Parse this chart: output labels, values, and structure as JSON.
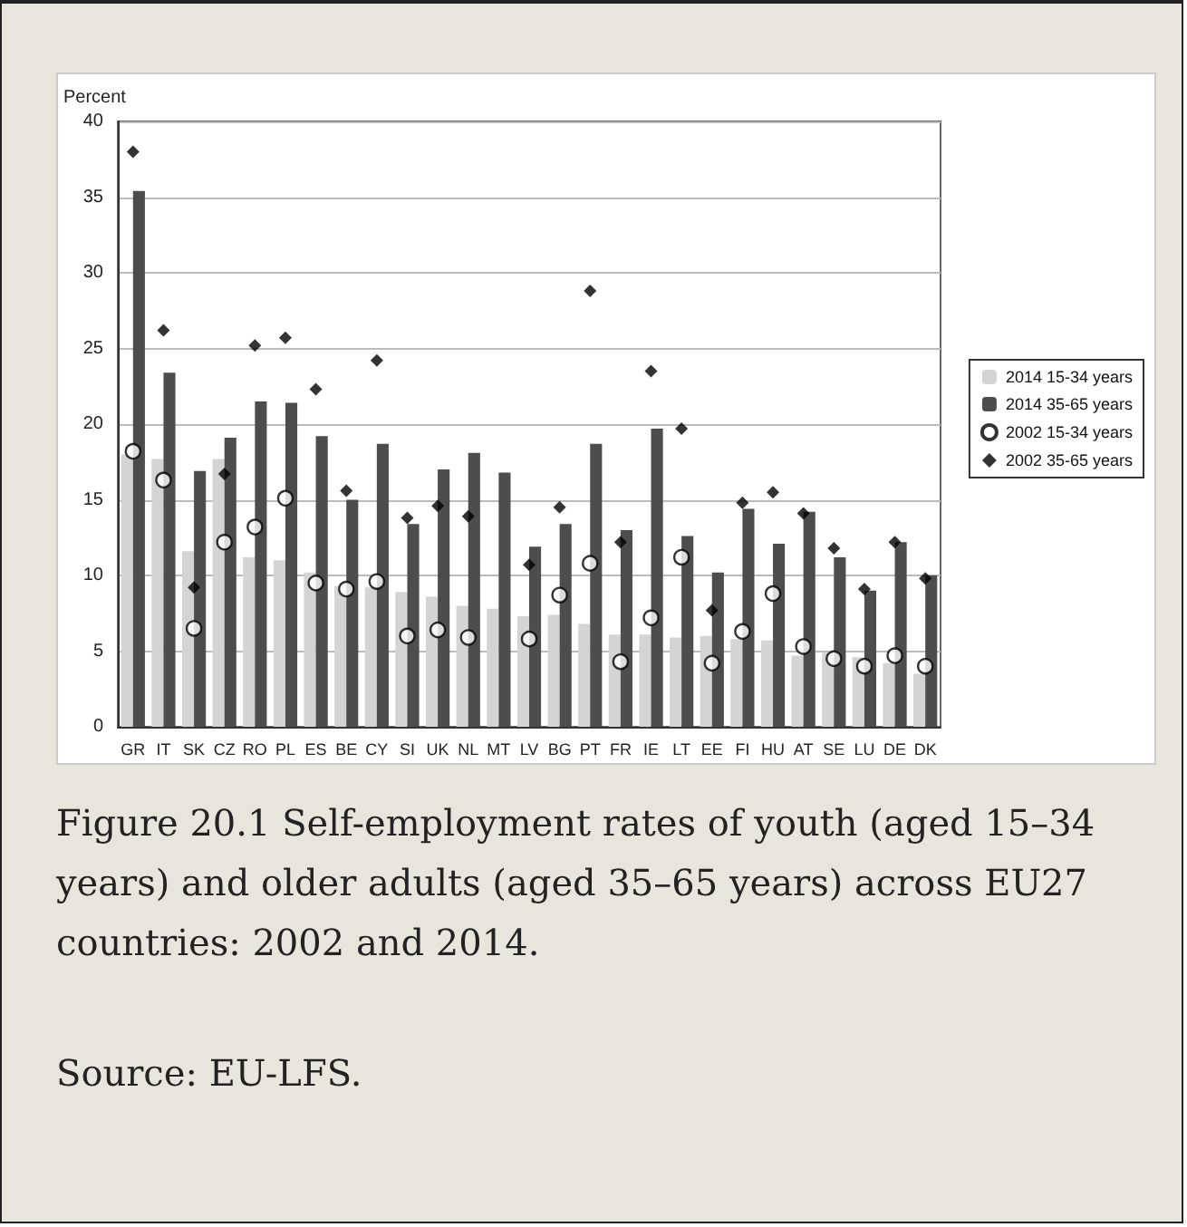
{
  "chart_data": {
    "type": "bar",
    "title": "Figure 20.1 Self-employment rates of youth (aged 15–34 years) and older adults (aged 35–65 years) across EU27 countries: 2002 and 2014.",
    "ylabel": "Percent",
    "annotations": [
      "Source: EU-LFS."
    ],
    "categories": [
      "GR",
      "IT",
      "SK",
      "CZ",
      "RO",
      "PL",
      "ES",
      "BE",
      "CY",
      "SI",
      "UK",
      "NL",
      "MT",
      "LV",
      "BG",
      "PT",
      "FR",
      "IE",
      "LT",
      "EE",
      "FI",
      "HU",
      "AT",
      "SE",
      "LU",
      "DE",
      "DK"
    ],
    "series": [
      {
        "name": "2014 15-34 years",
        "color": "#d4d4d4",
        "values": [
          18,
          17.7,
          11.6,
          17.7,
          11.2,
          11,
          10.2,
          9.3,
          9.2,
          8.9,
          8.6,
          8,
          7.8,
          7.3,
          7.4,
          6.8,
          6.1,
          6.1,
          5.9,
          6,
          5.8,
          5.7,
          4.7,
          4.9,
          4.6,
          4.2,
          3.5
        ]
      },
      {
        "name": "2014 35-65 years",
        "color": "#4d4d4d",
        "values": [
          35.4,
          23.4,
          16.9,
          19.1,
          21.5,
          21.4,
          19.2,
          15,
          18.7,
          13.4,
          17,
          18.1,
          16.8,
          11.9,
          13.4,
          18.7,
          13,
          19.7,
          12.6,
          10.2,
          14.4,
          12.1,
          14.2,
          11.2,
          9,
          12.2,
          10
        ]
      },
      {
        "name": "2002 15-34 years",
        "type": "scatter",
        "marker": "circle",
        "color": "#ffffff",
        "values": [
          18.2,
          16.3,
          6.5,
          12.2,
          13.2,
          15.1,
          9.5,
          9.1,
          9.6,
          6,
          6.4,
          5.9,
          null,
          5.8,
          8.7,
          10.8,
          4.3,
          7.2,
          11.2,
          4.2,
          6.3,
          8.8,
          5.3,
          4.5,
          4,
          4.7,
          4
        ]
      },
      {
        "name": "2002 35-65 years",
        "type": "scatter",
        "marker": "diamond",
        "color": "#000000",
        "values": [
          38,
          26.2,
          9.2,
          16.7,
          25.2,
          25.7,
          22.3,
          15.6,
          24.2,
          13.8,
          14.6,
          13.9,
          null,
          10.7,
          14.5,
          28.8,
          12.2,
          23.5,
          19.7,
          7.7,
          14.8,
          15.5,
          14.1,
          11.8,
          9.1,
          12.2,
          9.8
        ]
      }
    ],
    "ylim": [
      0,
      40
    ],
    "yticks": [
      0,
      5,
      10,
      15,
      20,
      25,
      30,
      35,
      40
    ],
    "grid": "y",
    "legend": "right"
  }
}
